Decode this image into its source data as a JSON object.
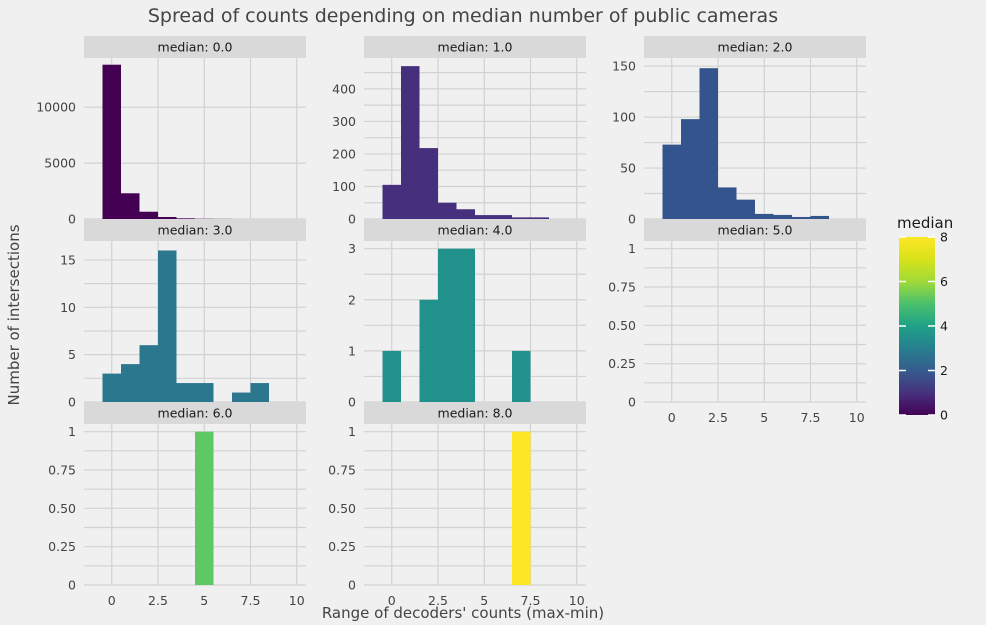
{
  "chart_data": {
    "type": "bar",
    "title": "Spread of counts depending on median number of public cameras",
    "xlabel": "Range of decoders' counts (max-min)",
    "ylabel": "Number of intersections",
    "xlim": [
      -1.5,
      10.5
    ],
    "x_ticks": [
      0,
      2.5,
      5,
      7.5,
      10
    ],
    "x_tick_labels": [
      "0",
      "2.5",
      "5",
      "7.5",
      "10"
    ],
    "bin_width": 1,
    "bin_centers": [
      0,
      1,
      2,
      3,
      4,
      5,
      6,
      7,
      8,
      9
    ],
    "legend": {
      "title": "median",
      "placement": "right",
      "colormap": "viridis",
      "range": [
        0,
        8
      ],
      "ticks": [
        0,
        2,
        4,
        6,
        8
      ],
      "tick_labels": [
        "0",
        "2",
        "4",
        "6",
        "8"
      ]
    },
    "panels": [
      {
        "label": "median: 0.0",
        "median": 0,
        "color": "#440154",
        "ylim": [
          0,
          14400
        ],
        "y_ticks": [
          0,
          5000,
          10000
        ],
        "y_tick_labels": [
          "0",
          "5000",
          "10000"
        ],
        "values": [
          13800,
          2300,
          650,
          180,
          60,
          20,
          10,
          0,
          0,
          0
        ]
      },
      {
        "label": "median: 1.0",
        "median": 1,
        "color": "#46307e",
        "ylim": [
          0,
          495
        ],
        "y_ticks": [
          0,
          100,
          200,
          300,
          400
        ],
        "y_tick_labels": [
          "0",
          "100",
          "200",
          "300",
          "400"
        ],
        "values": [
          105,
          470,
          218,
          50,
          30,
          12,
          12,
          5,
          5,
          0
        ]
      },
      {
        "label": "median: 2.0",
        "median": 2,
        "color": "#33548c",
        "ylim": [
          0,
          158
        ],
        "y_ticks": [
          0,
          50,
          100,
          150
        ],
        "y_tick_labels": [
          "0",
          "50",
          "100",
          "150"
        ],
        "values": [
          73,
          98,
          148,
          31,
          19,
          5,
          4,
          2,
          3,
          0
        ]
      },
      {
        "label": "median: 3.0",
        "median": 3,
        "color": "#2a778e",
        "ylim": [
          0,
          17
        ],
        "y_ticks": [
          0,
          5,
          10,
          15
        ],
        "y_tick_labels": [
          "0",
          "5",
          "10",
          "15"
        ],
        "values": [
          3,
          4,
          6,
          16,
          2,
          2,
          0,
          1,
          2,
          0
        ]
      },
      {
        "label": "median: 4.0",
        "median": 4,
        "color": "#21918c",
        "ylim": [
          0,
          3.15
        ],
        "y_ticks": [
          0,
          1,
          2,
          3
        ],
        "y_tick_labels": [
          "0",
          "1",
          "2",
          "3"
        ],
        "values": [
          1,
          0,
          2,
          3,
          3,
          0,
          0,
          1,
          0,
          0
        ]
      },
      {
        "label": "median: 5.0",
        "median": 5,
        "color": "#22a884",
        "ylim": [
          0,
          1.05
        ],
        "y_ticks": [
          0,
          0.25,
          0.5,
          0.75,
          1
        ],
        "y_tick_labels": [
          "0",
          "0.25",
          "0.50",
          "0.75",
          "1"
        ],
        "values": [
          0,
          0,
          0,
          0,
          0,
          0,
          0,
          0,
          0,
          0
        ]
      },
      {
        "label": "median: 6.0",
        "median": 6,
        "color": "#5ec962",
        "ylim": [
          0,
          1.05
        ],
        "y_ticks": [
          0,
          0.25,
          0.5,
          0.75,
          1
        ],
        "y_tick_labels": [
          "0",
          "0.25",
          "0.50",
          "0.75",
          "1"
        ],
        "values": [
          0,
          0,
          0,
          0,
          0,
          1,
          0,
          0,
          0,
          0
        ]
      },
      {
        "label": "median: 8.0",
        "median": 8,
        "color": "#fde725",
        "ylim": [
          0,
          1.05
        ],
        "y_ticks": [
          0,
          0.25,
          0.5,
          0.75,
          1
        ],
        "y_tick_labels": [
          "0",
          "0.25",
          "0.50",
          "0.75",
          "1"
        ],
        "values": [
          0,
          0,
          0,
          0,
          0,
          0,
          0,
          1,
          0,
          0
        ]
      }
    ]
  }
}
